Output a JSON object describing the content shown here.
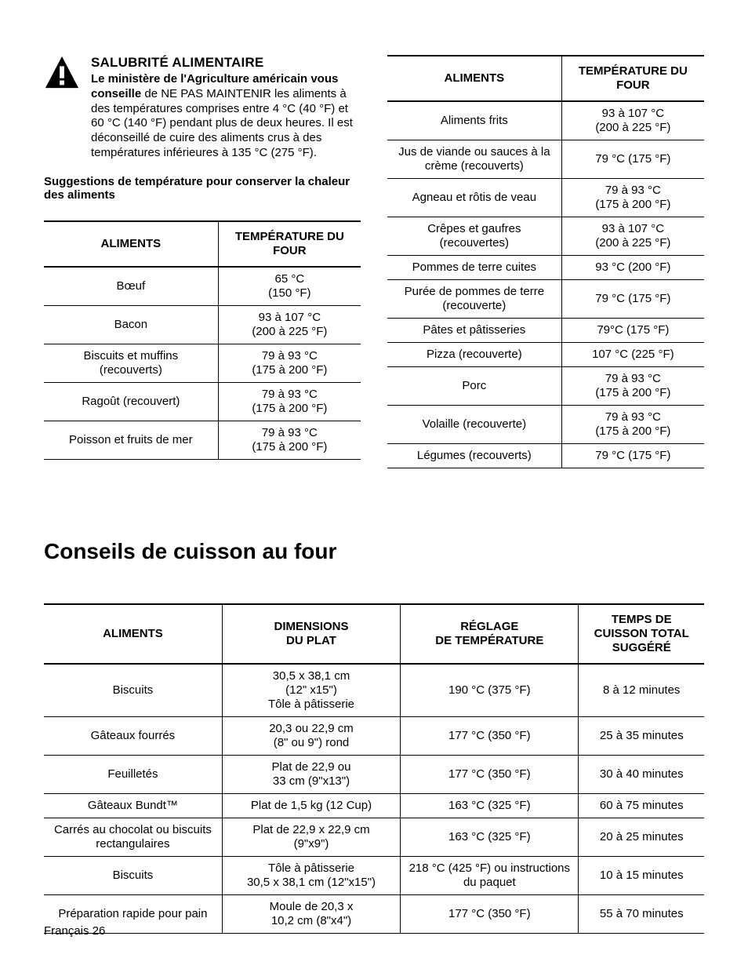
{
  "colors": {
    "text": "#000000",
    "background": "#ffffff",
    "border": "#000000"
  },
  "typography": {
    "base_font": "Arial, Helvetica, sans-serif",
    "base_size_pt": 11,
    "heading_size_pt": 21,
    "table_header_size_pt": 11,
    "warn_heading_size_pt": 13
  },
  "warning": {
    "title": "SALUBRITÉ ALIMENTAIRE",
    "lead_bold": "Le ministère de l'Agriculture américain vous conseille",
    "body": " de NE PAS MAINTENIR les aliments à des températures comprises entre 4 °C (40 °F) et 60 °C (140 °F) pendant plus de deux heures. Il est déconseillé de cuire des aliments crus à des températures inférieures à 135 °C (275 °F).",
    "icon_name": "warning-triangle-icon"
  },
  "keepwarm": {
    "subheading": "Suggestions de température pour conserver la chaleur des aliments",
    "columns": [
      "ALIMENTS",
      "TEMPÉRATURE DU FOUR"
    ],
    "left_rows": [
      {
        "food": "Bœuf",
        "temp": "65 °C\n(150 °F)"
      },
      {
        "food": "Bacon",
        "temp": "93 à 107 °C\n(200 à 225 °F)"
      },
      {
        "food": "Biscuits et muffins\n(recouverts)",
        "temp": "79 à 93 °C\n(175 à 200 °F)"
      },
      {
        "food": "Ragoût (recouvert)",
        "temp": "79 à 93 °C\n(175 à 200 °F)"
      },
      {
        "food": "Poisson et fruits de mer",
        "temp": "79 à 93 °C\n(175 à 200 °F)"
      }
    ],
    "right_rows": [
      {
        "food": "Aliments frits",
        "temp": "93 à 107 °C\n(200 à 225 °F)"
      },
      {
        "food": "Jus de viande ou sauces à la\ncrème (recouverts)",
        "temp": "79 °C (175 °F)"
      },
      {
        "food": "Agneau et rôtis de veau",
        "temp": "79 à 93 °C\n(175 à 200 °F)"
      },
      {
        "food": "Crêpes et gaufres\n(recouvertes)",
        "temp": "93 à 107 °C\n(200 à 225 °F)"
      },
      {
        "food": "Pommes de terre cuites",
        "temp": "93 °C (200 °F)"
      },
      {
        "food": "Purée de pommes de terre\n(recouverte)",
        "temp": "79 °C (175 °F)"
      },
      {
        "food": "Pâtes et pâtisseries",
        "temp": "79°C (175 °F)"
      },
      {
        "food": "Pizza (recouverte)",
        "temp": "107 °C (225 °F)"
      },
      {
        "food": "Porc",
        "temp": "79 à 93 °C\n(175 à 200 °F)"
      },
      {
        "food": "Volaille (recouverte)",
        "temp": "79 à 93 °C\n(175 à 200 °F)"
      },
      {
        "food": "Légumes (recouverts)",
        "temp": "79 °C (175 °F)"
      }
    ]
  },
  "baking": {
    "heading": "Conseils de cuisson au four",
    "columns": [
      "ALIMENTS",
      "DIMENSIONS\nDU PLAT",
      "RÉGLAGE\nDE TEMPÉRATURE",
      "TEMPS DE\nCUISSON TOTAL\nSUGGÉRÉ"
    ],
    "col_widths_percent": [
      27,
      27,
      27,
      19
    ],
    "rows": [
      {
        "food": "Biscuits",
        "dim": "30,5 x 38,1 cm\n(12\" x15\")\nTôle à pâtisserie",
        "temp": "190 °C (375 °F)",
        "time": "8 à 12 minutes"
      },
      {
        "food": "Gâteaux fourrés",
        "dim": "20,3 ou 22,9 cm\n(8\" ou 9\") rond",
        "temp": "177 °C (350 °F)",
        "time": "25 à 35 minutes"
      },
      {
        "food": "Feuilletés",
        "dim": "Plat de 22,9 ou\n33 cm (9\"x13\")",
        "temp": "177 °C (350 °F)",
        "time": "30 à 40 minutes"
      },
      {
        "food": "Gâteaux Bundt™",
        "dim": "Plat de 1,5 kg (12 Cup)",
        "temp": "163 °C (325 °F)",
        "time": "60 à 75 minutes"
      },
      {
        "food": "Carrés au chocolat ou biscuits\nrectangulaires",
        "dim": "Plat de 22,9 x 22,9 cm\n(9\"x9\")",
        "temp": "163 °C (325 °F)",
        "time": "20 à 25 minutes"
      },
      {
        "food": "Biscuits",
        "dim": "Tôle à pâtisserie\n30,5 x 38,1 cm (12\"x15\")",
        "temp": "218 °C (425 °F) ou instructions\ndu paquet",
        "time": "10 à 15 minutes"
      },
      {
        "food": "Préparation rapide pour pain",
        "dim": "Moule de 20,3 x\n10,2 cm (8\"x4\")",
        "temp": "177 °C (350 °F)",
        "time": "55 à 70 minutes"
      }
    ]
  },
  "footer": "Français 26"
}
